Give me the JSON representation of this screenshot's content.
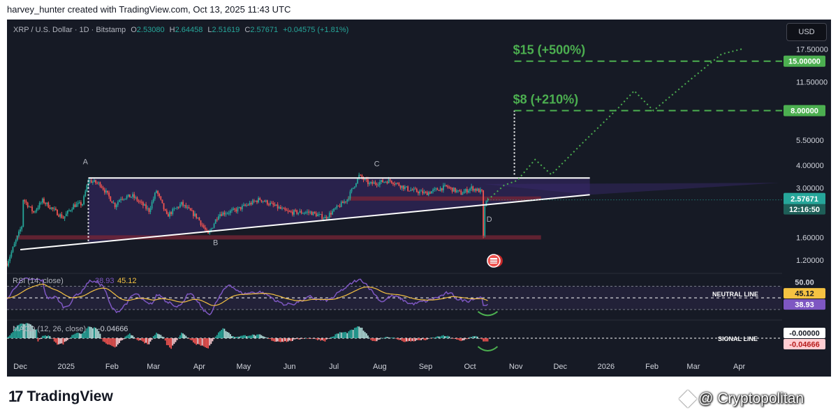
{
  "caption": "harvey_hunter created with TradingView.com, Oct 13, 2025 11:43 UTC",
  "legend": {
    "symbol": "XRP / U.S. Dollar · 1D · Bitstamp",
    "o_label": "O",
    "o": "2.53080",
    "h_label": "H",
    "h": "2.64458",
    "l_label": "L",
    "l": "2.51619",
    "c_label": "C",
    "c": "2.57671",
    "change": "+0.04575 (+1.81%)"
  },
  "currency_button": "USD",
  "colors": {
    "background": "#161a25",
    "up": "#26a69a",
    "down": "#ef5350",
    "target": "#4caf50",
    "rsi": "#7e57c2",
    "rsi_ma": "#f5c242",
    "pattern_fill": "#3a2a6e",
    "support_zone": "#7a2536"
  },
  "chart_data": [
    {
      "type": "candlestick",
      "title": "XRP / U.S. Dollar · 1D · Bitstamp",
      "scale": "log",
      "ylim": [
        1.05,
        19
      ],
      "price_ticks": [
        "17.50000",
        "11.50000",
        "5.50000",
        "4.00000",
        "3.00000",
        "1.60000",
        "1.20000"
      ],
      "time_axis": [
        "Dec",
        "2025",
        "Feb",
        "Mar",
        "Apr",
        "May",
        "Jun",
        "Jul",
        "Aug",
        "Sep",
        "Oct",
        "Nov",
        "Dec",
        "2026",
        "Feb",
        "Mar",
        "Apr"
      ],
      "xlim": [
        "2024-11-22",
        "2026-04-30"
      ],
      "path": [
        [
          "2024-11-22",
          1.15
        ],
        [
          "2024-12-02",
          1.85
        ],
        [
          "2024-12-03",
          2.6
        ],
        [
          "2024-12-10",
          2.2
        ],
        [
          "2024-12-16",
          2.55
        ],
        [
          "2024-12-30",
          2.05
        ],
        [
          "2025-01-06",
          2.4
        ],
        [
          "2025-01-12",
          2.45
        ],
        [
          "2025-01-16",
          3.3
        ],
        [
          "2025-01-24",
          3.15
        ],
        [
          "2025-02-03",
          2.4
        ],
        [
          "2025-02-07",
          2.65
        ],
        [
          "2025-02-15",
          2.7
        ],
        [
          "2025-02-26",
          2.25
        ],
        [
          "2025-03-03",
          2.9
        ],
        [
          "2025-03-10",
          2.1
        ],
        [
          "2025-03-20",
          2.45
        ],
        [
          "2025-03-31",
          2.05
        ],
        [
          "2025-04-07",
          1.65
        ],
        [
          "2025-04-14",
          2.15
        ],
        [
          "2025-04-25",
          2.25
        ],
        [
          "2025-05-12",
          2.6
        ],
        [
          "2025-05-31",
          2.2
        ],
        [
          "2025-06-15",
          2.2
        ],
        [
          "2025-06-25",
          2.05
        ],
        [
          "2025-07-10",
          2.6
        ],
        [
          "2025-07-18",
          3.5
        ],
        [
          "2025-07-25",
          3.15
        ],
        [
          "2025-08-08",
          3.3
        ],
        [
          "2025-08-20",
          2.95
        ],
        [
          "2025-09-01",
          2.8
        ],
        [
          "2025-09-15",
          3.05
        ],
        [
          "2025-09-25",
          2.8
        ],
        [
          "2025-10-02",
          3.0
        ],
        [
          "2025-10-09",
          2.85
        ],
        [
          "2025-10-10",
          1.6
        ],
        [
          "2025-10-11",
          2.4
        ],
        [
          "2025-10-13",
          2.57671
        ]
      ],
      "current_price": "2.57671",
      "countdown": "12:16:50",
      "targets": [
        {
          "label": "$15 (+500%)",
          "value": "15.00000",
          "price": 15.0
        },
        {
          "label": "$8 (+210%)",
          "value": "8.00000",
          "price": 8.0
        }
      ],
      "pattern_points": [
        "A",
        "B",
        "C",
        "D"
      ],
      "projection": [
        [
          "2025-10-13",
          2.57
        ],
        [
          "2025-10-24",
          3.1
        ],
        [
          "2025-11-02",
          3.3
        ],
        [
          "2025-11-14",
          4.3
        ],
        [
          "2025-11-25",
          3.55
        ],
        [
          "2025-12-15",
          5.2
        ],
        [
          "2026-01-10",
          8.4
        ],
        [
          "2026-01-20",
          10.3
        ],
        [
          "2026-02-02",
          8.0
        ],
        [
          "2026-02-25",
          11.5
        ],
        [
          "2026-03-20",
          16.4
        ],
        [
          "2026-04-04",
          17.6
        ]
      ]
    },
    {
      "type": "line",
      "title": "RSI (14, close)",
      "value": "38.93",
      "ma_value": "45.12",
      "level_value": "50.00",
      "level_label": "NEUTRAL LINE",
      "ylim": [
        25,
        85
      ]
    },
    {
      "type": "bar",
      "title": "MACD (12, 26, close)",
      "value": "-0.04666",
      "signal_value": "-0.00000",
      "signal_label": "SIGNAL LINE"
    }
  ],
  "footer": {
    "tv_mark": "17",
    "tv_name": "TradingView"
  },
  "watermark": {
    "at": "@",
    "name": "Cryptopolitan"
  }
}
